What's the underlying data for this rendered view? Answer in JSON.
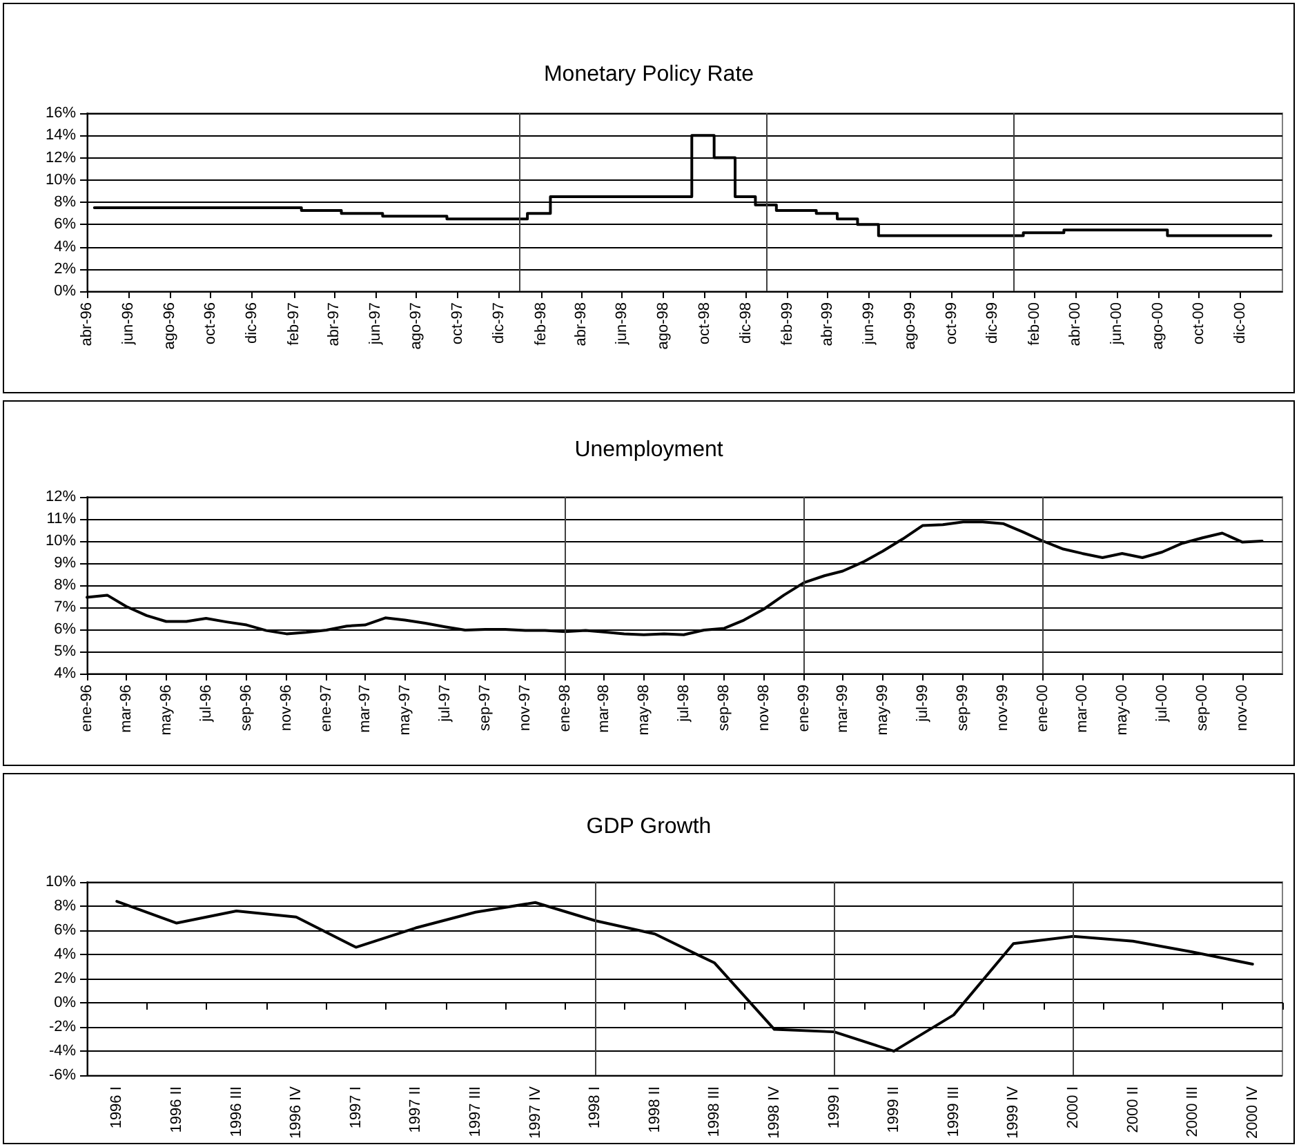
{
  "chart_data": [
    {
      "type": "step",
      "title": "Monetary Policy Rate",
      "color": "#000000",
      "grid": "y",
      "x": [
        "1996-04-12",
        "1997-02-12",
        "1997-04-12",
        "1997-06-12",
        "1997-09-15",
        "1998-01-12",
        "1998-02-15",
        "1998-09-12",
        "1998-10-15",
        "1998-11-15",
        "1998-12-15",
        "1999-01-15",
        "1999-03-15",
        "1999-04-15",
        "1999-05-15",
        "1999-06-15",
        "2000-01-15",
        "2000-03-15",
        "2000-08-15",
        "2001-01-15"
      ],
      "values": [
        7.5,
        7.25,
        7.0,
        6.75,
        6.5,
        7.0,
        8.5,
        14,
        12,
        8.5,
        7.75,
        7.25,
        7.0,
        6.5,
        6.0,
        5.0,
        5.25,
        5.5,
        5.0,
        5.0
      ],
      "xlim": [
        "1996-04",
        "2001-02"
      ],
      "xticks": [
        {
          "value": "1996-04",
          "label": "abr-96"
        },
        {
          "value": "1996-06",
          "label": "jun-96"
        },
        {
          "value": "1996-08",
          "label": "ago-96"
        },
        {
          "value": "1996-10",
          "label": "oct-96"
        },
        {
          "value": "1996-12",
          "label": "dic-96"
        },
        {
          "value": "1997-02",
          "label": "feb-97"
        },
        {
          "value": "1997-04",
          "label": "abr-97"
        },
        {
          "value": "1997-06",
          "label": "jun-97"
        },
        {
          "value": "1997-08",
          "label": "ago-97"
        },
        {
          "value": "1997-10",
          "label": "oct-97"
        },
        {
          "value": "1997-12",
          "label": "dic-97"
        },
        {
          "value": "1998-02",
          "label": "feb-98"
        },
        {
          "value": "1998-04",
          "label": "abr-98"
        },
        {
          "value": "1998-06",
          "label": "jun-98"
        },
        {
          "value": "1998-08",
          "label": "ago-98"
        },
        {
          "value": "1998-10",
          "label": "oct-98"
        },
        {
          "value": "1998-12",
          "label": "dic-98"
        },
        {
          "value": "1999-02",
          "label": "feb-99"
        },
        {
          "value": "1999-04",
          "label": "abr-99"
        },
        {
          "value": "1999-06",
          "label": "jun-99"
        },
        {
          "value": "1999-08",
          "label": "ago-99"
        },
        {
          "value": "1999-10",
          "label": "oct-99"
        },
        {
          "value": "1999-12",
          "label": "dic-99"
        },
        {
          "value": "2000-02",
          "label": "feb-00"
        },
        {
          "value": "2000-04",
          "label": "abr-00"
        },
        {
          "value": "2000-06",
          "label": "jun-00"
        },
        {
          "value": "2000-08",
          "label": "ago-00"
        },
        {
          "value": "2000-10",
          "label": "oct-00"
        },
        {
          "value": "2000-12",
          "label": "dic-00"
        }
      ],
      "ylim": [
        0,
        16
      ],
      "yticks": [
        {
          "value": 0,
          "label": "0%"
        },
        {
          "value": 2,
          "label": "2%"
        },
        {
          "value": 4,
          "label": "4%"
        },
        {
          "value": 6,
          "label": "6%"
        },
        {
          "value": 8,
          "label": "8%"
        },
        {
          "value": 10,
          "label": "10%"
        },
        {
          "value": 12,
          "label": "12%"
        },
        {
          "value": 14,
          "label": "14%"
        },
        {
          "value": 16,
          "label": "16%"
        }
      ],
      "ref_lines": [
        {
          "axis": "x",
          "value": "1998-01",
          "color": "#404040"
        },
        {
          "axis": "x",
          "value": "1999-01",
          "color": "#404040"
        },
        {
          "axis": "x",
          "value": "2000-01",
          "color": "#404040"
        }
      ]
    },
    {
      "type": "line",
      "title": "Unemployment",
      "color": "#000000",
      "grid": "y",
      "x": [
        "1996-01",
        "1996-02",
        "1996-03",
        "1996-04",
        "1996-05",
        "1996-06",
        "1996-07",
        "1996-08",
        "1996-09",
        "1996-10",
        "1996-11",
        "1996-12",
        "1997-01",
        "1997-02",
        "1997-03",
        "1997-04",
        "1997-05",
        "1997-06",
        "1997-07",
        "1997-08",
        "1997-09",
        "1997-10",
        "1997-11",
        "1997-12",
        "1998-01",
        "1998-02",
        "1998-03",
        "1998-04",
        "1998-05",
        "1998-06",
        "1998-07",
        "1998-08",
        "1998-09",
        "1998-10",
        "1998-11",
        "1998-12",
        "1999-01",
        "1999-02",
        "1999-03",
        "1999-04",
        "1999-05",
        "1999-06",
        "1999-07",
        "1999-08",
        "1999-09",
        "1999-10",
        "1999-11",
        "1999-12",
        "2000-01",
        "2000-02",
        "2000-03",
        "2000-04",
        "2000-05",
        "2000-06",
        "2000-07",
        "2000-08",
        "2000-09",
        "2000-10",
        "2000-11",
        "2000-12"
      ],
      "values": [
        7.45,
        7.55,
        7.04,
        6.63,
        6.36,
        6.36,
        6.5,
        6.34,
        6.2,
        5.95,
        5.8,
        5.87,
        5.97,
        6.15,
        6.2,
        6.52,
        6.42,
        6.28,
        6.12,
        5.97,
        6.0,
        6.0,
        5.95,
        5.95,
        5.9,
        5.95,
        5.88,
        5.8,
        5.76,
        5.8,
        5.76,
        5.97,
        6.05,
        6.42,
        6.93,
        7.55,
        8.12,
        8.43,
        8.64,
        9.05,
        9.54,
        10.1,
        10.7,
        10.74,
        10.87,
        10.87,
        10.79,
        10.42,
        10.0,
        9.64,
        9.44,
        9.25,
        9.44,
        9.25,
        9.5,
        9.9,
        10.15,
        10.36,
        9.95,
        10.0
      ],
      "xlim": [
        "1996-01",
        "2001-01"
      ],
      "xticks": [
        {
          "value": "1996-01",
          "label": "ene-96"
        },
        {
          "value": "1996-03",
          "label": "mar-96"
        },
        {
          "value": "1996-05",
          "label": "may-96"
        },
        {
          "value": "1996-07",
          "label": "jul-96"
        },
        {
          "value": "1996-09",
          "label": "sep-96"
        },
        {
          "value": "1996-11",
          "label": "nov-96"
        },
        {
          "value": "1997-01",
          "label": "ene-97"
        },
        {
          "value": "1997-03",
          "label": "mar-97"
        },
        {
          "value": "1997-05",
          "label": "may-97"
        },
        {
          "value": "1997-07",
          "label": "jul-97"
        },
        {
          "value": "1997-09",
          "label": "sep-97"
        },
        {
          "value": "1997-11",
          "label": "nov-97"
        },
        {
          "value": "1998-01",
          "label": "ene-98"
        },
        {
          "value": "1998-03",
          "label": "mar-98"
        },
        {
          "value": "1998-05",
          "label": "may-98"
        },
        {
          "value": "1998-07",
          "label": "jul-98"
        },
        {
          "value": "1998-09",
          "label": "sep-98"
        },
        {
          "value": "1998-11",
          "label": "nov-98"
        },
        {
          "value": "1999-01",
          "label": "ene-99"
        },
        {
          "value": "1999-03",
          "label": "mar-99"
        },
        {
          "value": "1999-05",
          "label": "may-99"
        },
        {
          "value": "1999-07",
          "label": "jul-99"
        },
        {
          "value": "1999-09",
          "label": "sep-99"
        },
        {
          "value": "1999-11",
          "label": "nov-99"
        },
        {
          "value": "2000-01",
          "label": "ene-00"
        },
        {
          "value": "2000-03",
          "label": "mar-00"
        },
        {
          "value": "2000-05",
          "label": "may-00"
        },
        {
          "value": "2000-07",
          "label": "jul-00"
        },
        {
          "value": "2000-09",
          "label": "sep-00"
        },
        {
          "value": "2000-11",
          "label": "nov-00"
        }
      ],
      "ylim": [
        4,
        12
      ],
      "yticks": [
        {
          "value": 4,
          "label": "4%"
        },
        {
          "value": 5,
          "label": "5%"
        },
        {
          "value": 6,
          "label": "6%"
        },
        {
          "value": 7,
          "label": "7%"
        },
        {
          "value": 8,
          "label": "8%"
        },
        {
          "value": 9,
          "label": "9%"
        },
        {
          "value": 10,
          "label": "10%"
        },
        {
          "value": 11,
          "label": "11%"
        },
        {
          "value": 12,
          "label": "12%"
        }
      ],
      "ref_lines": [
        {
          "axis": "x",
          "value": "1998-01",
          "color": "#404040"
        },
        {
          "axis": "x",
          "value": "1999-01",
          "color": "#404040"
        },
        {
          "axis": "x",
          "value": "2000-01",
          "color": "#404040"
        }
      ]
    },
    {
      "type": "line",
      "title": "GDP Growth",
      "color": "#000000",
      "grid": "y",
      "categories": [
        "1996 I",
        "1996 II",
        "1996 III",
        "1996 IV",
        "1997 I",
        "1997 II",
        "1997 III",
        "1997 IV",
        "1998 I",
        "1998 II",
        "1998 III",
        "1998 IV",
        "1999 I",
        "1999 II",
        "1999 III",
        "1999 IV",
        "2000 I",
        "2000 II",
        "2000 III",
        "2000 IV"
      ],
      "values": [
        8.4,
        6.6,
        7.6,
        7.1,
        4.6,
        6.2,
        7.5,
        8.3,
        6.8,
        5.7,
        3.3,
        -2.2,
        -2.4,
        -4.0,
        -1.0,
        4.9,
        5.5,
        5.1,
        4.2,
        3.2
      ],
      "ylim": [
        -6,
        10
      ],
      "yticks": [
        {
          "value": -6,
          "label": "-6%"
        },
        {
          "value": -4,
          "label": "-4%"
        },
        {
          "value": -2,
          "label": "-2%"
        },
        {
          "value": 0,
          "label": "0%"
        },
        {
          "value": 2,
          "label": "2%"
        },
        {
          "value": 4,
          "label": "4%"
        },
        {
          "value": 6,
          "label": "6%"
        },
        {
          "value": 8,
          "label": "8%"
        },
        {
          "value": 10,
          "label": "10%"
        }
      ],
      "ref_lines": [
        {
          "axis": "x",
          "value": "1998 I",
          "color": "#404040"
        },
        {
          "axis": "x",
          "value": "1999 I",
          "color": "#404040"
        },
        {
          "axis": "x",
          "value": "2000 I",
          "color": "#404040"
        }
      ]
    }
  ]
}
